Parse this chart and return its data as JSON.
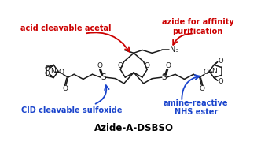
{
  "title": "Azide-A-DSBSO",
  "title_fontsize": 8.5,
  "title_fontweight": "bold",
  "labels": {
    "acid_cleavable": "acid cleavable acetal",
    "azide": "azide for affinity\npurification",
    "cid": "CID cleavable sulfoxide",
    "amine": "amine-reactive\nNHS ester"
  },
  "label_colors": {
    "red": "#cc0000",
    "blue": "#1a44cc"
  },
  "bg_color": "#ffffff",
  "line_color": "#1a1a1a",
  "line_width": 1.1
}
